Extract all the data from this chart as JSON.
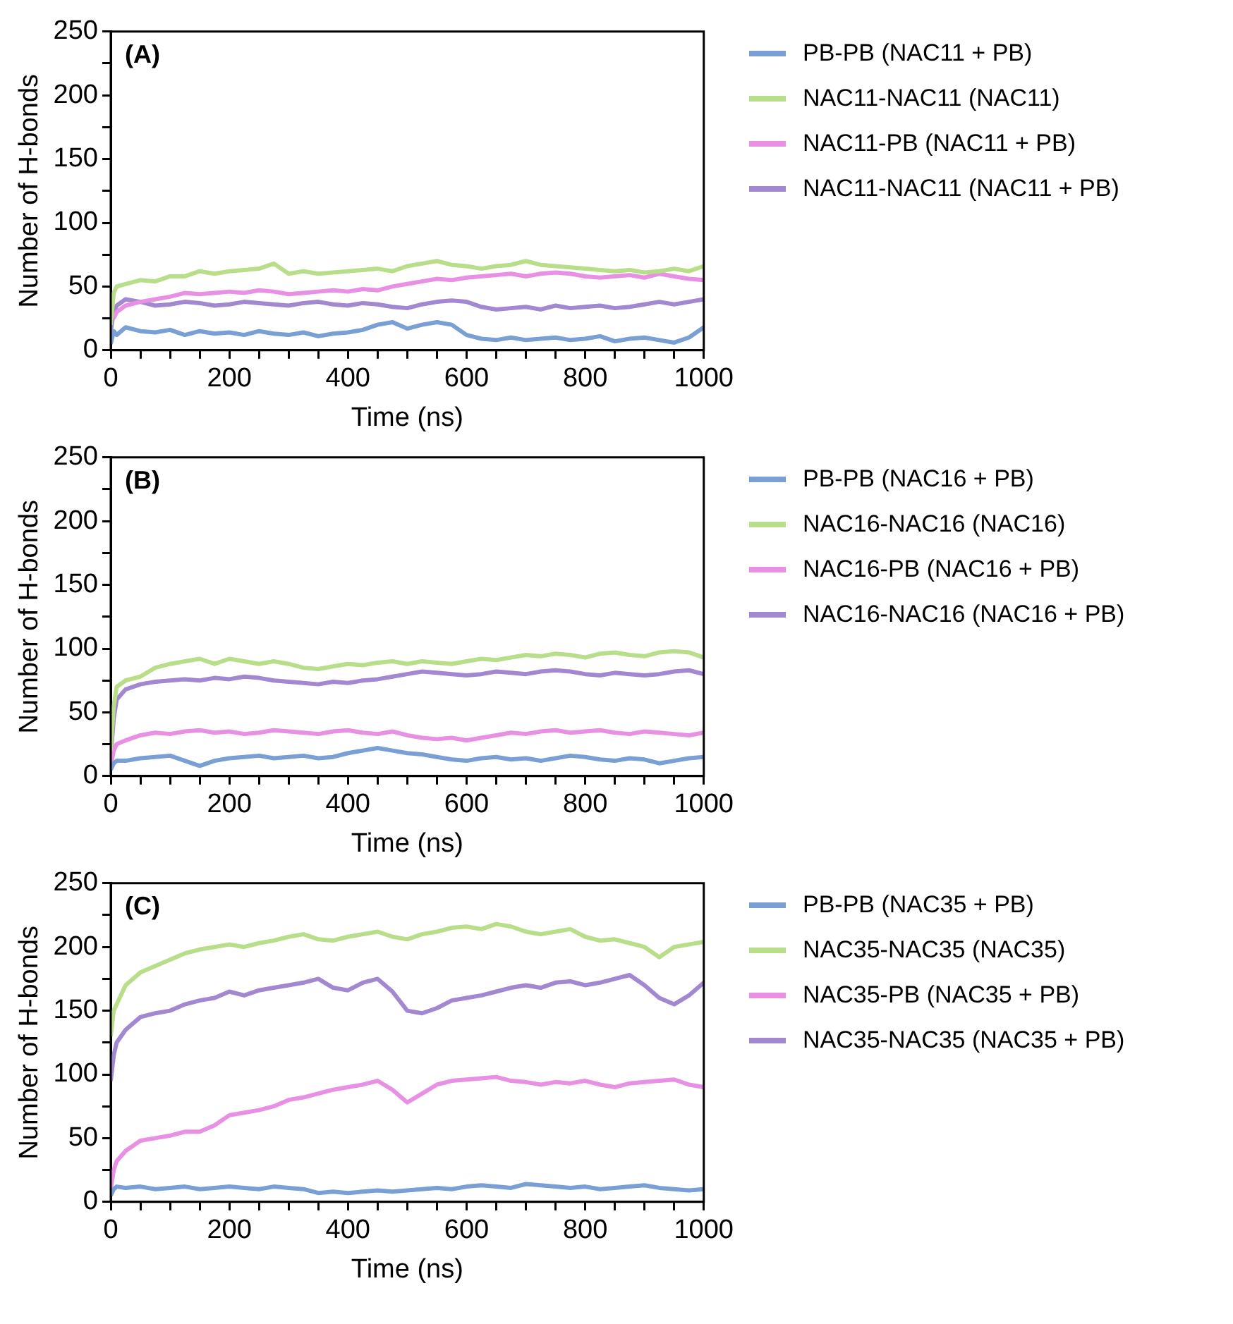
{
  "chart_data": [
    {
      "type": "line",
      "title": "(A)",
      "xlabel": "Time (ns)",
      "ylabel": "Number of H-bonds",
      "legend": "right",
      "grid": false,
      "x": [
        0,
        5,
        10,
        25,
        50,
        75,
        100,
        125,
        150,
        175,
        200,
        225,
        250,
        275,
        300,
        325,
        350,
        375,
        400,
        425,
        450,
        475,
        500,
        525,
        550,
        575,
        600,
        625,
        650,
        675,
        700,
        725,
        750,
        775,
        800,
        825,
        850,
        875,
        900,
        925,
        950,
        975,
        1000
      ],
      "xlim": [
        0,
        1000
      ],
      "xticks": [
        0,
        {
          "value": 50,
          "label": null
        },
        {
          "value": 100,
          "label": null
        },
        {
          "value": 150,
          "label": null
        },
        200,
        {
          "value": 250,
          "label": null
        },
        {
          "value": 300,
          "label": null
        },
        {
          "value": 350,
          "label": null
        },
        400,
        {
          "value": 450,
          "label": null
        },
        {
          "value": 500,
          "label": null
        },
        {
          "value": 550,
          "label": null
        },
        600,
        {
          "value": 650,
          "label": null
        },
        {
          "value": 700,
          "label": null
        },
        {
          "value": 750,
          "label": null
        },
        800,
        {
          "value": 850,
          "label": null
        },
        {
          "value": 900,
          "label": null
        },
        {
          "value": 950,
          "label": null
        },
        1000
      ],
      "ylim": [
        0,
        250
      ],
      "yticks": [
        0,
        {
          "value": 25,
          "label": null
        },
        50,
        {
          "value": 75,
          "label": null
        },
        100,
        {
          "value": 125,
          "label": null
        },
        150,
        {
          "value": 175,
          "label": null
        },
        200,
        {
          "value": 225,
          "label": null
        },
        250
      ],
      "series": [
        {
          "name": "PB-PB (NAC11 + PB)",
          "color": "#7a9fd4",
          "values": [
            5,
            15,
            12,
            18,
            15,
            14,
            16,
            12,
            15,
            13,
            14,
            12,
            15,
            13,
            12,
            14,
            11,
            13,
            14,
            16,
            20,
            22,
            17,
            20,
            22,
            20,
            12,
            9,
            8,
            10,
            8,
            9,
            10,
            8,
            9,
            11,
            7,
            9,
            10,
            8,
            6,
            10,
            18
          ]
        },
        {
          "name": "NAC11-NAC11 (NAC11)",
          "color": "#b8de8a",
          "values": [
            20,
            45,
            50,
            52,
            55,
            54,
            58,
            58,
            62,
            60,
            62,
            63,
            64,
            68,
            60,
            62,
            60,
            61,
            62,
            63,
            64,
            62,
            66,
            68,
            70,
            67,
            66,
            64,
            66,
            67,
            70,
            67,
            66,
            65,
            64,
            63,
            62,
            63,
            61,
            62,
            64,
            62,
            66
          ]
        },
        {
          "name": "NAC11-PB (NAC11 + PB)",
          "color": "#e890e3",
          "values": [
            null,
            25,
            30,
            35,
            38,
            40,
            42,
            45,
            44,
            45,
            46,
            45,
            47,
            46,
            44,
            45,
            46,
            47,
            46,
            48,
            47,
            50,
            52,
            54,
            56,
            55,
            57,
            58,
            59,
            60,
            58,
            60,
            61,
            60,
            58,
            57,
            58,
            59,
            57,
            60,
            58,
            56,
            55
          ]
        },
        {
          "name": "NAC11-NAC11 (NAC11 + PB)",
          "color": "#a287d1",
          "values": [
            15,
            30,
            35,
            40,
            38,
            35,
            36,
            38,
            37,
            35,
            36,
            38,
            37,
            36,
            35,
            37,
            38,
            36,
            35,
            37,
            36,
            34,
            33,
            36,
            38,
            39,
            38,
            34,
            32,
            33,
            34,
            32,
            35,
            33,
            34,
            35,
            33,
            34,
            36,
            38,
            36,
            38,
            40
          ]
        }
      ]
    },
    {
      "type": "line",
      "title": "(B)",
      "xlabel": "Time (ns)",
      "ylabel": "Number of H-bonds",
      "legend": "right",
      "grid": false,
      "x": [
        0,
        5,
        10,
        25,
        50,
        75,
        100,
        125,
        150,
        175,
        200,
        225,
        250,
        275,
        300,
        325,
        350,
        375,
        400,
        425,
        450,
        475,
        500,
        525,
        550,
        575,
        600,
        625,
        650,
        675,
        700,
        725,
        750,
        775,
        800,
        825,
        850,
        875,
        900,
        925,
        950,
        975,
        1000
      ],
      "xlim": [
        0,
        1000
      ],
      "xticks": [
        0,
        {
          "value": 50,
          "label": null
        },
        {
          "value": 100,
          "label": null
        },
        {
          "value": 150,
          "label": null
        },
        200,
        {
          "value": 250,
          "label": null
        },
        {
          "value": 300,
          "label": null
        },
        {
          "value": 350,
          "label": null
        },
        400,
        {
          "value": 450,
          "label": null
        },
        {
          "value": 500,
          "label": null
        },
        {
          "value": 550,
          "label": null
        },
        600,
        {
          "value": 650,
          "label": null
        },
        {
          "value": 700,
          "label": null
        },
        {
          "value": 750,
          "label": null
        },
        800,
        {
          "value": 850,
          "label": null
        },
        {
          "value": 900,
          "label": null
        },
        {
          "value": 950,
          "label": null
        },
        1000
      ],
      "ylim": [
        0,
        250
      ],
      "yticks": [
        0,
        {
          "value": 25,
          "label": null
        },
        50,
        {
          "value": 75,
          "label": null
        },
        100,
        {
          "value": 125,
          "label": null
        },
        150,
        {
          "value": 175,
          "label": null
        },
        200,
        {
          "value": 225,
          "label": null
        },
        250
      ],
      "series": [
        {
          "name": "PB-PB (NAC16 + PB)",
          "color": "#7a9fd4",
          "values": [
            5,
            10,
            12,
            12,
            14,
            15,
            16,
            12,
            8,
            12,
            14,
            15,
            16,
            14,
            15,
            16,
            14,
            15,
            18,
            20,
            22,
            20,
            18,
            17,
            15,
            13,
            12,
            14,
            15,
            13,
            14,
            12,
            14,
            16,
            15,
            13,
            12,
            14,
            13,
            10,
            12,
            14,
            15
          ]
        },
        {
          "name": "NAC16-NAC16 (NAC16)",
          "color": "#b8de8a",
          "values": [
            20,
            55,
            70,
            75,
            78,
            85,
            88,
            90,
            92,
            88,
            92,
            90,
            88,
            90,
            88,
            85,
            84,
            86,
            88,
            87,
            89,
            90,
            88,
            90,
            89,
            88,
            90,
            92,
            91,
            93,
            95,
            94,
            96,
            95,
            93,
            96,
            97,
            95,
            94,
            97,
            98,
            97,
            93
          ]
        },
        {
          "name": "NAC16-PB (NAC16 + PB)",
          "color": "#e890e3",
          "values": [
            8,
            20,
            25,
            28,
            32,
            34,
            33,
            35,
            36,
            34,
            35,
            33,
            34,
            36,
            35,
            34,
            33,
            35,
            36,
            34,
            33,
            35,
            32,
            30,
            29,
            30,
            28,
            30,
            32,
            34,
            33,
            35,
            36,
            34,
            35,
            36,
            34,
            33,
            35,
            34,
            33,
            32,
            34
          ]
        },
        {
          "name": "NAC16-NAC16 (NAC16 + PB)",
          "color": "#a287d1",
          "values": [
            15,
            45,
            60,
            68,
            72,
            74,
            75,
            76,
            75,
            77,
            76,
            78,
            77,
            75,
            74,
            73,
            72,
            74,
            73,
            75,
            76,
            78,
            80,
            82,
            81,
            80,
            79,
            80,
            82,
            81,
            80,
            82,
            83,
            82,
            80,
            79,
            81,
            80,
            79,
            80,
            82,
            83,
            80
          ]
        }
      ]
    },
    {
      "type": "line",
      "title": "(C)",
      "xlabel": "Time (ns)",
      "ylabel": "Number of H-bonds",
      "legend": "right",
      "grid": false,
      "x": [
        0,
        5,
        10,
        25,
        50,
        75,
        100,
        125,
        150,
        175,
        200,
        225,
        250,
        275,
        300,
        325,
        350,
        375,
        400,
        425,
        450,
        475,
        500,
        525,
        550,
        575,
        600,
        625,
        650,
        675,
        700,
        725,
        750,
        775,
        800,
        825,
        850,
        875,
        900,
        925,
        950,
        975,
        1000
      ],
      "xlim": [
        0,
        1000
      ],
      "xticks": [
        0,
        {
          "value": 50,
          "label": null
        },
        {
          "value": 100,
          "label": null
        },
        {
          "value": 150,
          "label": null
        },
        200,
        {
          "value": 250,
          "label": null
        },
        {
          "value": 300,
          "label": null
        },
        {
          "value": 350,
          "label": null
        },
        400,
        {
          "value": 450,
          "label": null
        },
        {
          "value": 500,
          "label": null
        },
        {
          "value": 550,
          "label": null
        },
        600,
        {
          "value": 650,
          "label": null
        },
        {
          "value": 700,
          "label": null
        },
        {
          "value": 750,
          "label": null
        },
        800,
        {
          "value": 850,
          "label": null
        },
        {
          "value": 900,
          "label": null
        },
        {
          "value": 950,
          "label": null
        },
        1000
      ],
      "ylim": [
        0,
        250
      ],
      "yticks": [
        0,
        {
          "value": 25,
          "label": null
        },
        50,
        {
          "value": 75,
          "label": null
        },
        100,
        {
          "value": 125,
          "label": null
        },
        150,
        {
          "value": 175,
          "label": null
        },
        200,
        {
          "value": 225,
          "label": null
        },
        250
      ],
      "series": [
        {
          "name": "PB-PB (NAC35 + PB)",
          "color": "#7a9fd4",
          "values": [
            5,
            10,
            12,
            11,
            12,
            10,
            11,
            12,
            10,
            11,
            12,
            11,
            10,
            12,
            11,
            10,
            7,
            8,
            7,
            8,
            9,
            8,
            9,
            10,
            11,
            10,
            12,
            13,
            12,
            11,
            14,
            13,
            12,
            11,
            12,
            10,
            11,
            12,
            13,
            11,
            10,
            9,
            10
          ]
        },
        {
          "name": "NAC35-NAC35 (NAC35)",
          "color": "#b8de8a",
          "values": [
            130,
            150,
            155,
            170,
            180,
            185,
            190,
            195,
            198,
            200,
            202,
            200,
            203,
            205,
            208,
            210,
            206,
            205,
            208,
            210,
            212,
            208,
            206,
            210,
            212,
            215,
            216,
            214,
            218,
            216,
            212,
            210,
            212,
            214,
            208,
            205,
            206,
            203,
            200,
            192,
            200,
            202,
            204
          ]
        },
        {
          "name": "NAC35-PB (NAC35 + PB)",
          "color": "#e890e3",
          "values": [
            10,
            25,
            32,
            40,
            48,
            50,
            52,
            55,
            55,
            60,
            68,
            70,
            72,
            75,
            80,
            82,
            85,
            88,
            90,
            92,
            95,
            88,
            78,
            85,
            92,
            95,
            96,
            97,
            98,
            95,
            94,
            92,
            94,
            93,
            95,
            92,
            90,
            93,
            94,
            95,
            96,
            92,
            90
          ]
        },
        {
          "name": "NAC35-NAC35 (NAC35 + PB)",
          "color": "#a287d1",
          "values": [
            95,
            115,
            125,
            135,
            145,
            148,
            150,
            155,
            158,
            160,
            165,
            162,
            166,
            168,
            170,
            172,
            175,
            168,
            166,
            172,
            175,
            165,
            150,
            148,
            152,
            158,
            160,
            162,
            165,
            168,
            170,
            168,
            172,
            173,
            170,
            172,
            175,
            178,
            170,
            160,
            155,
            162,
            172
          ]
        }
      ]
    }
  ]
}
